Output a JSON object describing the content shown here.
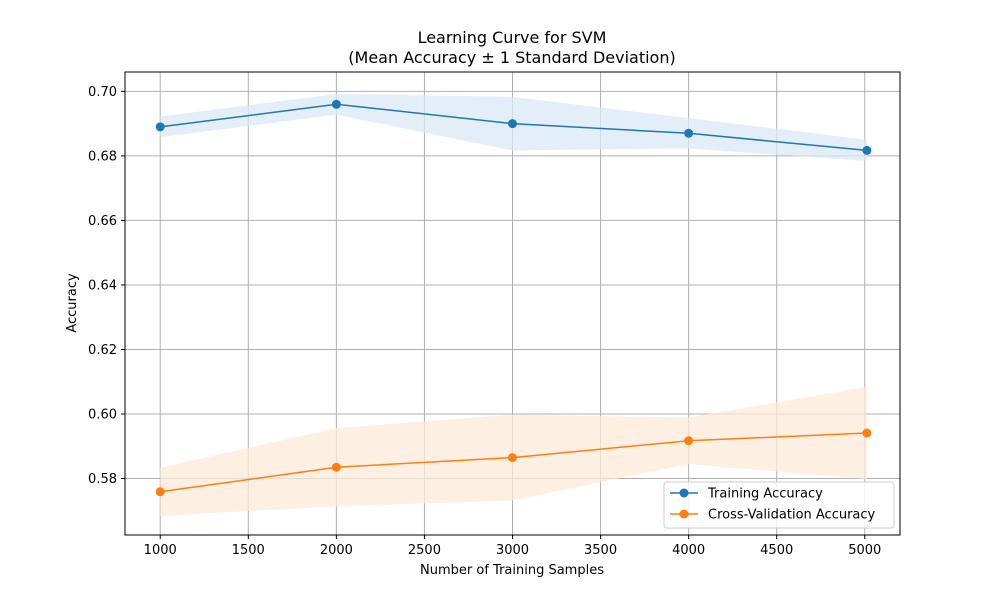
{
  "chart_data": {
    "type": "line",
    "title": [
      "Learning Curve for SVM",
      "(Mean Accuracy ± 1 Standard Deviation)"
    ],
    "xlabel": "Number of Training Samples",
    "ylabel": "Accuracy",
    "xlim": [
      800,
      5200
    ],
    "ylim": [
      0.5625,
      0.706
    ],
    "xticks": [
      1000,
      1500,
      2000,
      2500,
      3000,
      3500,
      4000,
      4500,
      5000
    ],
    "yticks": [
      0.58,
      0.6,
      0.62,
      0.64,
      0.66,
      0.68,
      0.7
    ],
    "xtick_labels": [
      "1000",
      "1500",
      "2000",
      "2500",
      "3000",
      "3500",
      "4000",
      "4500",
      "5000"
    ],
    "ytick_labels": [
      "0.58",
      "0.60",
      "0.62",
      "0.64",
      "0.66",
      "0.68",
      "0.70"
    ],
    "grid": true,
    "legend_position": "lower-right",
    "x": [
      1000,
      2000,
      3000,
      4000,
      5012
    ],
    "series": [
      {
        "name": "Training Accuracy",
        "color": "#1f77b4",
        "band_color": "#dbe8f5",
        "values": [
          0.689,
          0.696,
          0.69,
          0.687,
          0.6817
        ],
        "lower": [
          0.6858,
          0.6928,
          0.6817,
          0.6823,
          0.6784
        ],
        "upper": [
          0.6922,
          0.6992,
          0.6983,
          0.6917,
          0.685
        ]
      },
      {
        "name": "Cross-Validation Accuracy",
        "color": "#ff7f0e",
        "band_color": "#fde9d9",
        "values": [
          0.5759,
          0.5835,
          0.5865,
          0.5917,
          0.5941
        ],
        "lower": [
          0.5684,
          0.5714,
          0.5732,
          0.5845,
          0.5798
        ],
        "upper": [
          0.5834,
          0.5956,
          0.5998,
          0.5989,
          0.6084
        ]
      }
    ]
  }
}
